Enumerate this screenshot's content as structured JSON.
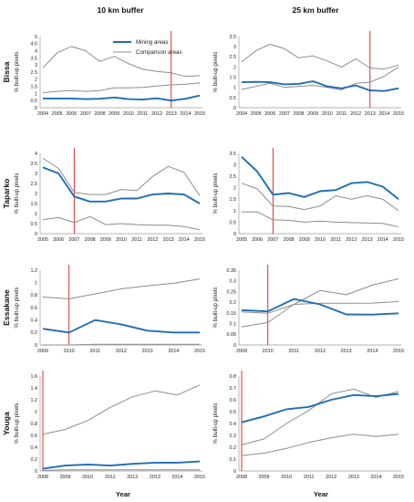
{
  "figure": {
    "column_titles": [
      "10 km buffer",
      "25 km buffer"
    ],
    "row_titles": [
      "Bissa",
      "Taparko",
      "Essakane",
      "Youga"
    ],
    "y_axis_label": "% built-up pixels",
    "x_axis_label": "Year",
    "colors": {
      "mining": "#1f6db5",
      "comparison": "#8c8c8c",
      "event": "#d9322e"
    }
  },
  "chart_data": [
    {
      "type": "line",
      "site": "Bissa",
      "buffer": "10 km buffer",
      "x": [
        2004,
        2005,
        2006,
        2007,
        2008,
        2009,
        2010,
        2011,
        2012,
        2013,
        2014,
        2015
      ],
      "ylim": [
        0,
        5
      ],
      "yticks": [
        0,
        0.5,
        1,
        1.5,
        2,
        2.5,
        3,
        3.5,
        4,
        4.5,
        5
      ],
      "event_year": 2013,
      "legend": {
        "entries": [
          "Mining areas",
          "Comparison areas"
        ],
        "position": "top-right"
      },
      "series": [
        {
          "name": "Mining areas",
          "role": "mining",
          "values": [
            0.65,
            0.65,
            0.65,
            0.6,
            0.63,
            0.72,
            0.6,
            0.57,
            0.66,
            0.5,
            0.63,
            0.85
          ]
        },
        {
          "name": "Comparison areas",
          "role": "comparison",
          "values": [
            2.8,
            3.85,
            4.3,
            4.0,
            3.25,
            3.6,
            3.1,
            2.7,
            2.55,
            2.45,
            2.2,
            2.25
          ]
        },
        {
          "role": "comparison",
          "values": [
            1.05,
            1.15,
            1.2,
            1.15,
            1.2,
            1.4,
            1.4,
            1.42,
            1.52,
            1.6,
            1.65,
            1.75
          ]
        }
      ]
    },
    {
      "type": "line",
      "site": "Bissa",
      "buffer": "25 km buffer",
      "x": [
        2004,
        2005,
        2006,
        2007,
        2008,
        2009,
        2010,
        2011,
        2012,
        2013,
        2014,
        2015
      ],
      "ylim": [
        0,
        3.5
      ],
      "yticks": [
        0,
        0.5,
        1,
        1.5,
        2,
        2.5,
        3,
        3.5
      ],
      "event_year": 2013,
      "series": [
        {
          "role": "mining",
          "values": [
            1.25,
            1.27,
            1.25,
            1.15,
            1.17,
            1.3,
            1.05,
            0.95,
            1.1,
            0.85,
            0.82,
            0.95
          ]
        },
        {
          "role": "comparison",
          "values": [
            2.25,
            2.8,
            3.12,
            2.9,
            2.45,
            2.55,
            2.3,
            2.0,
            2.4,
            1.95,
            1.9,
            2.1
          ]
        },
        {
          "role": "comparison",
          "values": [
            0.9,
            1.05,
            1.2,
            1.0,
            1.05,
            1.1,
            1.0,
            0.88,
            1.2,
            1.25,
            1.55,
            2.0
          ]
        }
      ]
    },
    {
      "type": "line",
      "site": "Taparko",
      "buffer": "10 km buffer",
      "x": [
        2005,
        2006,
        2007,
        2008,
        2009,
        2010,
        2011,
        2012,
        2013,
        2014,
        2015
      ],
      "ylim": [
        0,
        4
      ],
      "yticks": [
        0,
        0.5,
        1,
        1.5,
        2,
        2.5,
        3,
        3.5,
        4
      ],
      "event_year": 2007,
      "series": [
        {
          "role": "mining",
          "values": [
            3.3,
            3.0,
            1.85,
            1.6,
            1.6,
            1.75,
            1.75,
            1.95,
            2.0,
            1.95,
            1.5
          ]
        },
        {
          "role": "comparison",
          "values": [
            3.75,
            3.25,
            2.05,
            1.95,
            1.95,
            2.2,
            2.15,
            2.85,
            3.35,
            3.05,
            1.9
          ]
        },
        {
          "role": "comparison",
          "values": [
            0.7,
            0.8,
            0.55,
            0.85,
            0.45,
            0.5,
            0.45,
            0.42,
            0.42,
            0.35,
            0.2
          ]
        }
      ]
    },
    {
      "type": "line",
      "site": "Taparko",
      "buffer": "25 km buffer",
      "x": [
        2005,
        2006,
        2007,
        2008,
        2009,
        2010,
        2011,
        2012,
        2013,
        2014,
        2015
      ],
      "ylim": [
        0,
        3.5
      ],
      "yticks": [
        0,
        0.5,
        1,
        1.5,
        2,
        2.5,
        3,
        3.5
      ],
      "event_year": 2007,
      "series": [
        {
          "role": "mining",
          "values": [
            3.35,
            2.7,
            1.7,
            1.77,
            1.6,
            1.85,
            1.9,
            2.2,
            2.25,
            2.05,
            1.5
          ]
        },
        {
          "role": "comparison",
          "values": [
            2.2,
            1.95,
            1.2,
            1.18,
            1.05,
            1.2,
            1.65,
            1.5,
            1.65,
            1.5,
            1.0
          ]
        },
        {
          "role": "comparison",
          "values": [
            0.95,
            0.95,
            0.6,
            0.58,
            0.5,
            0.55,
            0.5,
            0.48,
            0.47,
            0.45,
            0.3
          ]
        }
      ]
    },
    {
      "type": "line",
      "site": "Essakane",
      "buffer": "10 km buffer",
      "x": [
        2009,
        2010,
        2011,
        2012,
        2013,
        2014,
        2015
      ],
      "ylim": [
        0,
        1.2
      ],
      "yticks": [
        0,
        0.2,
        0.4,
        0.6,
        0.8,
        1,
        1.2
      ],
      "event_year": 2010,
      "series": [
        {
          "role": "mining",
          "values": [
            0.26,
            0.2,
            0.4,
            0.33,
            0.23,
            0.2,
            0.2
          ]
        },
        {
          "role": "comparison",
          "values": [
            0.77,
            0.74,
            0.82,
            0.9,
            0.95,
            0.99,
            1.06
          ]
        },
        {
          "role": "comparison",
          "values": [
            0.0,
            0.0,
            0.01,
            0.01,
            0.01,
            0.01,
            0.01
          ]
        }
      ]
    },
    {
      "type": "line",
      "site": "Essakane",
      "buffer": "25 km buffer",
      "x": [
        2009,
        2010,
        2011,
        2012,
        2013,
        2014,
        2015
      ],
      "ylim": [
        0,
        0.35
      ],
      "yticks": [
        0,
        0.05,
        0.1,
        0.15,
        0.2,
        0.25,
        0.3,
        0.35
      ],
      "event_year": 2010,
      "series": [
        {
          "role": "mining",
          "values": [
            0.163,
            0.157,
            0.215,
            0.19,
            0.143,
            0.142,
            0.148
          ]
        },
        {
          "role": "comparison",
          "values": [
            0.155,
            0.148,
            0.19,
            0.255,
            0.235,
            0.28,
            0.31
          ]
        },
        {
          "role": "comparison",
          "values": [
            0.085,
            0.105,
            0.19,
            0.195,
            0.195,
            0.196,
            0.203
          ]
        }
      ]
    },
    {
      "type": "line",
      "site": "Youga",
      "buffer": "10 km buffer",
      "x": [
        2008,
        2009,
        2010,
        2011,
        2012,
        2013,
        2014,
        2015
      ],
      "ylim": [
        0,
        1.6
      ],
      "yticks": [
        0,
        0.2,
        0.4,
        0.6,
        0.8,
        1,
        1.2,
        1.4,
        1.6
      ],
      "event_year": 2008,
      "series": [
        {
          "role": "mining",
          "values": [
            0.04,
            0.09,
            0.11,
            0.09,
            0.12,
            0.14,
            0.14,
            0.16
          ]
        },
        {
          "role": "comparison",
          "values": [
            0.62,
            0.7,
            0.85,
            1.07,
            1.25,
            1.35,
            1.28,
            1.45
          ]
        },
        {
          "role": "comparison",
          "values": [
            0.01,
            0.02,
            0.02,
            0.02,
            0.02,
            0.02,
            0.02,
            0.02
          ]
        }
      ]
    },
    {
      "type": "line",
      "site": "Youga",
      "buffer": "25 km buffer",
      "x": [
        2008,
        2009,
        2010,
        2011,
        2012,
        2013,
        2014,
        2015
      ],
      "ylim": [
        0,
        0.8
      ],
      "yticks": [
        0,
        0.1,
        0.2,
        0.3,
        0.4,
        0.5,
        0.6,
        0.7,
        0.8
      ],
      "event_year": 2008,
      "series": [
        {
          "role": "mining",
          "values": [
            0.41,
            0.46,
            0.52,
            0.54,
            0.6,
            0.64,
            0.63,
            0.65
          ]
        },
        {
          "role": "comparison",
          "values": [
            0.22,
            0.27,
            0.4,
            0.51,
            0.65,
            0.69,
            0.62,
            0.67
          ]
        },
        {
          "role": "comparison",
          "values": [
            0.13,
            0.15,
            0.19,
            0.24,
            0.28,
            0.31,
            0.29,
            0.31
          ]
        }
      ]
    }
  ]
}
